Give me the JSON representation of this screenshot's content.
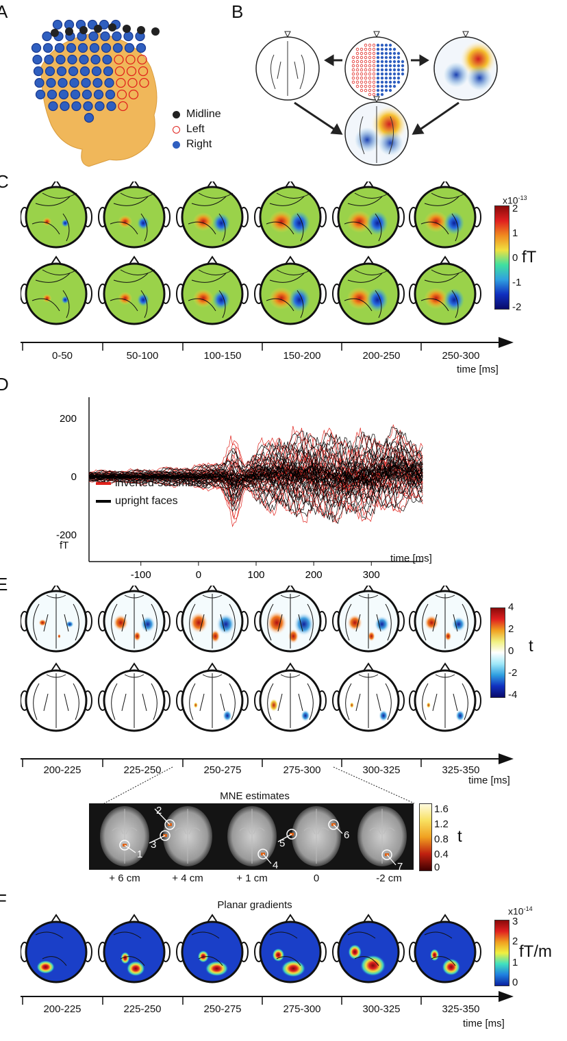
{
  "panels": {
    "A": "A",
    "B": "B",
    "C": "C",
    "D": "D",
    "E": "E",
    "F": "F"
  },
  "panel_a": {
    "legend": [
      {
        "label": "Midline",
        "color": "#222222",
        "style": "filled"
      },
      {
        "label": "Left",
        "color": "#e0221c",
        "style": "open"
      },
      {
        "label": "Right",
        "color": "#2f5fc0",
        "style": "filled"
      }
    ]
  },
  "panel_c": {
    "colorbar": {
      "exponent": "x10",
      "exponent_sup": "-13",
      "unit": "fT",
      "ticks": [
        "2",
        "1",
        "0",
        "-1",
        "-2"
      ]
    },
    "time_bins": [
      "0-50",
      "50-100",
      "100-150",
      "150-200",
      "200-250",
      "250-300"
    ],
    "axis_label": "time [ms]"
  },
  "panel_d": {
    "unit_label": "fT",
    "legend": [
      {
        "label": "inverted-scrambled",
        "color": "#e0221c"
      },
      {
        "label": "upright faces",
        "color": "#000000"
      }
    ]
  },
  "panel_e": {
    "colorbar": {
      "unit": "t",
      "ticks": [
        "4",
        "2",
        "0",
        "-2",
        "-4"
      ]
    },
    "time_bins": [
      "200-225",
      "225-250",
      "250-275",
      "275-300",
      "300-325",
      "325-350"
    ],
    "axis_label": "time [ms]",
    "mne": {
      "title": "MNE estimates",
      "slices": [
        "+ 6 cm",
        "+ 4 cm",
        "+ 1 cm",
        "0",
        "-2 cm"
      ],
      "sources": [
        "1",
        "2",
        "3",
        "4",
        "5",
        "6",
        "7"
      ],
      "colorbar": {
        "unit": "t",
        "ticks": [
          "1.6",
          "1.2",
          "0.8",
          "0.4",
          "0"
        ]
      }
    }
  },
  "panel_f": {
    "title": "Planar gradients",
    "colorbar": {
      "exponent": "x10",
      "exponent_sup": "-14",
      "unit": "fT/m",
      "ticks": [
        "3",
        "2",
        "1",
        "0"
      ]
    },
    "time_bins": [
      "200-225",
      "225-250",
      "250-275",
      "275-300",
      "300-325",
      "325-350"
    ],
    "axis_label": "time [ms]"
  },
  "chart_data": {
    "type": "line",
    "title": "",
    "xlabel": "time [ms]",
    "ylabel": "fT",
    "xlim": [
      -190,
      390
    ],
    "ylim": [
      -250,
      250
    ],
    "x_ticks": [
      -100,
      0,
      100,
      200,
      300
    ],
    "y_ticks": [
      200,
      0,
      -200
    ],
    "series": [
      {
        "name": "inverted-scrambled",
        "color": "#e0221c",
        "envelope": {
          "x": [
            -190,
            -100,
            0,
            40,
            62,
            80,
            100,
            150,
            200,
            250,
            300,
            350,
            390
          ],
          "upper": [
            22,
            26,
            40,
            65,
            150,
            45,
            110,
            160,
            170,
            150,
            150,
            165,
            120
          ],
          "lower": [
            -22,
            -26,
            -40,
            -60,
            -185,
            -55,
            -100,
            -140,
            -150,
            -160,
            -150,
            -120,
            -100
          ]
        }
      },
      {
        "name": "upright faces",
        "color": "#000000",
        "envelope": {
          "x": [
            -190,
            -100,
            0,
            40,
            62,
            80,
            100,
            150,
            200,
            250,
            300,
            350,
            390
          ],
          "upper": [
            20,
            24,
            36,
            55,
            100,
            40,
            100,
            150,
            160,
            145,
            150,
            170,
            110
          ],
          "lower": [
            -20,
            -24,
            -36,
            -50,
            -130,
            -45,
            -90,
            -130,
            -150,
            -155,
            -140,
            -115,
            -95
          ]
        }
      }
    ]
  }
}
